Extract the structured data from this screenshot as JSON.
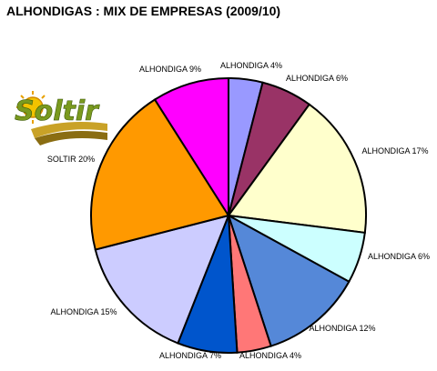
{
  "chart_data": {
    "type": "pie",
    "title": "ALHONDIGAS : MIX DE EMPRESAS (2009/10)",
    "slices": [
      {
        "label": "ALHONDIGA 4%",
        "value": 4,
        "color": "#9999ff"
      },
      {
        "label": "ALHONDIGA 6%",
        "value": 6,
        "color": "#993366"
      },
      {
        "label": "ALHONDIGA 17%",
        "value": 17,
        "color": "#ffffcc"
      },
      {
        "label": "ALHONDIGA 6%",
        "value": 6,
        "color": "#ccffff"
      },
      {
        "label": "ALHONDIGA 12%",
        "value": 12,
        "color": "#5588d8"
      },
      {
        "label": "ALHONDIGA 4%",
        "value": 4,
        "color": "#ff7777"
      },
      {
        "label": "ALHONDIGA 7%",
        "value": 7,
        "color": "#0055cc"
      },
      {
        "label": "ALHONDIGA 15%",
        "value": 15,
        "color": "#ccccff"
      },
      {
        "label": "SOLTIR 20%",
        "value": 20,
        "color": "#ff9900"
      },
      {
        "label": "ALHONDIGA 9%",
        "value": 9,
        "color": "#ff00ff"
      }
    ]
  },
  "logo": {
    "text": "Soltir",
    "icon": "soltir-sun-logo"
  }
}
